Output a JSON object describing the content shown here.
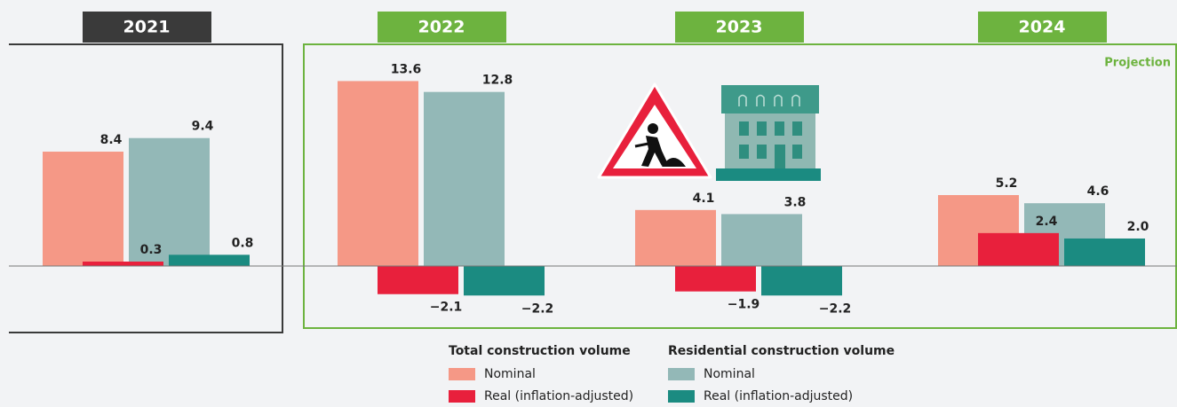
{
  "chart_data": {
    "type": "bar",
    "categories": [
      "2021",
      "2022",
      "2023",
      "2024"
    ],
    "annotation": "Projection",
    "ylim": [
      -4.6,
      15
    ],
    "series": [
      {
        "name": "Nominal",
        "group": "Total construction volume",
        "color": "#f59886",
        "values": [
          8.4,
          13.6,
          4.1,
          5.2
        ],
        "value_labels": [
          "8.4",
          "13.6",
          "4.1",
          "5.2"
        ]
      },
      {
        "name": "Real (inflation-adjusted)",
        "group": "Total construction volume",
        "color": "#e8203c",
        "values": [
          0.3,
          -2.1,
          -1.9,
          2.4
        ],
        "value_labels": [
          "0.3",
          "−2.1",
          "−1.9",
          "2.4"
        ]
      },
      {
        "name": "Nominal",
        "group": "Residential construction volume",
        "color": "#93b8b7",
        "values": [
          9.4,
          12.8,
          3.8,
          4.6
        ],
        "value_labels": [
          "9.4",
          "12.8",
          "3.8",
          "4.6"
        ]
      },
      {
        "name": "Real (inflation-adjusted)",
        "group": "Residential construction volume",
        "color": "#1b8b81",
        "values": [
          0.8,
          -2.2,
          -2.2,
          2.0
        ],
        "value_labels": [
          "0.8",
          "−2.2",
          "−2.2",
          "2.0"
        ]
      }
    ]
  }
}
